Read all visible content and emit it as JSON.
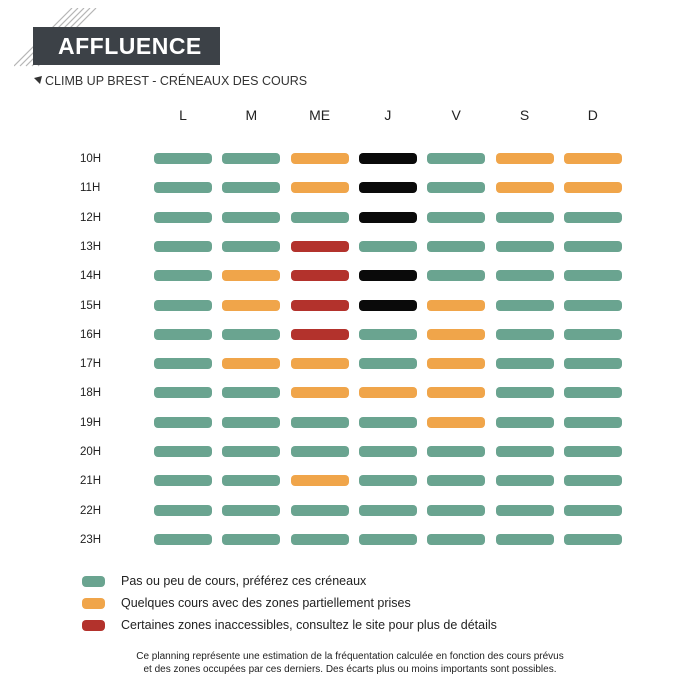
{
  "header": {
    "title": "AFFLUENCE",
    "subtitle": "CLIMB UP BREST - CRÉNEAUX DES COURS"
  },
  "colors": {
    "low": "#6aa490",
    "medium": "#f0a54a",
    "high": "#b3322c",
    "full": "#0a0a0a",
    "title_bg": "#3c4147"
  },
  "chart_data": {
    "type": "heatmap",
    "columns": [
      "L",
      "M",
      "ME",
      "J",
      "V",
      "S",
      "D"
    ],
    "rows": [
      "10H",
      "11H",
      "12H",
      "13H",
      "14H",
      "15H",
      "16H",
      "17H",
      "18H",
      "19H",
      "20H",
      "21H",
      "22H",
      "23H"
    ],
    "levels": [
      "low",
      "medium",
      "high",
      "full"
    ],
    "values": [
      [
        "low",
        "low",
        "medium",
        "full",
        "low",
        "medium",
        "medium"
      ],
      [
        "low",
        "low",
        "medium",
        "full",
        "low",
        "medium",
        "medium"
      ],
      [
        "low",
        "low",
        "low",
        "full",
        "low",
        "low",
        "low"
      ],
      [
        "low",
        "low",
        "high",
        "low",
        "low",
        "low",
        "low"
      ],
      [
        "low",
        "medium",
        "high",
        "full",
        "low",
        "low",
        "low"
      ],
      [
        "low",
        "medium",
        "high",
        "full",
        "medium",
        "low",
        "low"
      ],
      [
        "low",
        "low",
        "high",
        "low",
        "medium",
        "low",
        "low"
      ],
      [
        "low",
        "medium",
        "medium",
        "low",
        "medium",
        "low",
        "low"
      ],
      [
        "low",
        "low",
        "medium",
        "medium",
        "medium",
        "low",
        "low"
      ],
      [
        "low",
        "low",
        "low",
        "low",
        "medium",
        "low",
        "low"
      ],
      [
        "low",
        "low",
        "low",
        "low",
        "low",
        "low",
        "low"
      ],
      [
        "low",
        "low",
        "medium",
        "low",
        "low",
        "low",
        "low"
      ],
      [
        "low",
        "low",
        "low",
        "low",
        "low",
        "low",
        "low"
      ],
      [
        "low",
        "low",
        "low",
        "low",
        "low",
        "low",
        "low"
      ]
    ]
  },
  "legend": [
    {
      "level": "low",
      "label": "Pas ou peu de cours, préférez ces créneaux"
    },
    {
      "level": "medium",
      "label": "Quelques cours avec des zones partiellement prises"
    },
    {
      "level": "high",
      "label": "Certaines zones inaccessibles, consultez le site pour plus de détails"
    }
  ],
  "footnote": {
    "line1": "Ce planning représente une estimation de la fréquentation calculée en fonction des cours prévus",
    "line2": "et des zones occupées par ces derniers. Des écarts plus ou moins importants sont possibles."
  }
}
